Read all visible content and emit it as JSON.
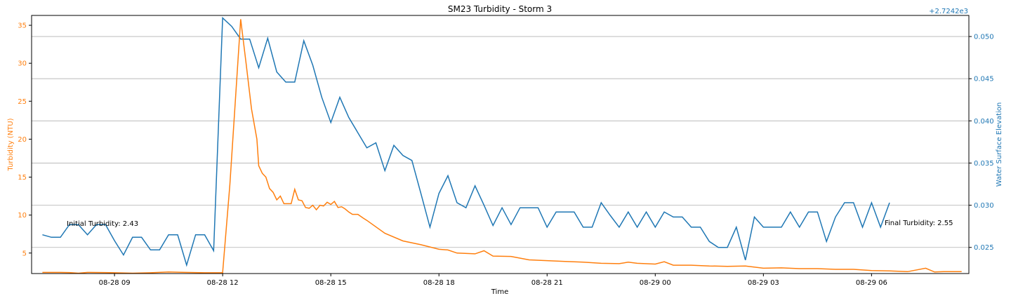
{
  "chart_data": {
    "type": "line",
    "title": "SM23 Turbidity - Storm 3",
    "xlabel": "Time",
    "ylabel_left": "Turbidity (NTU)",
    "ylabel_right": "Water Surface Elevation",
    "right_axis_offset_text": "+2.7242e3",
    "x_ticks": [
      "08-28 09",
      "08-28 12",
      "08-28 15",
      "08-28 18",
      "08-28 21",
      "08-29 00",
      "08-29 03",
      "08-29 06"
    ],
    "y_left_ticks": [
      "5",
      "10",
      "15",
      "20",
      "25",
      "30",
      "35"
    ],
    "y_right_ticks": [
      "0.025",
      "0.030",
      "0.035",
      "0.040",
      "0.045",
      "0.050"
    ],
    "xlim_hours": [
      6.7,
      32.7
    ],
    "ylim_left": [
      2.3,
      36.3
    ],
    "ylim_right": [
      0.0219,
      0.0525
    ],
    "grid": "horizontal lines at right-axis ticks",
    "colors": {
      "turbidity": "#ff7f0e",
      "water_surface_elevation": "#1f77b4"
    },
    "annotations": {
      "initial": "Initial Turbidity: 2.43",
      "final": "Final Turbidity: 2.55"
    },
    "series": [
      {
        "axis": "left",
        "points": [
          [
            7.0,
            2.45
          ],
          [
            7.5,
            2.45
          ],
          [
            7.75,
            2.43
          ],
          [
            8.0,
            2.35
          ],
          [
            8.25,
            2.45
          ],
          [
            8.75,
            2.43
          ],
          [
            9.0,
            2.4
          ],
          [
            9.5,
            2.35
          ],
          [
            10.0,
            2.4
          ],
          [
            10.5,
            2.5
          ],
          [
            11.0,
            2.45
          ],
          [
            11.5,
            2.4
          ],
          [
            12.0,
            2.42
          ],
          [
            12.2,
            14.0
          ],
          [
            12.5,
            35.8
          ],
          [
            12.65,
            30.0
          ],
          [
            12.8,
            24.0
          ],
          [
            12.95,
            20.0
          ],
          [
            13.0,
            16.5
          ],
          [
            13.1,
            15.5
          ],
          [
            13.2,
            15.0
          ],
          [
            13.3,
            13.5
          ],
          [
            13.4,
            13.0
          ],
          [
            13.5,
            12.0
          ],
          [
            13.6,
            12.5
          ],
          [
            13.7,
            11.5
          ],
          [
            13.8,
            11.5
          ],
          [
            13.9,
            11.5
          ],
          [
            14.0,
            13.4
          ],
          [
            14.1,
            12.0
          ],
          [
            14.2,
            11.9
          ],
          [
            14.3,
            11.0
          ],
          [
            14.4,
            10.9
          ],
          [
            14.5,
            11.3
          ],
          [
            14.6,
            10.7
          ],
          [
            14.7,
            11.3
          ],
          [
            14.8,
            11.2
          ],
          [
            14.9,
            11.7
          ],
          [
            15.0,
            11.4
          ],
          [
            15.1,
            11.8
          ],
          [
            15.2,
            11.0
          ],
          [
            15.3,
            11.1
          ],
          [
            15.4,
            10.8
          ],
          [
            15.5,
            10.4
          ],
          [
            15.6,
            10.1
          ],
          [
            15.75,
            10.1
          ],
          [
            15.9,
            9.6
          ],
          [
            16.0,
            9.3
          ],
          [
            16.5,
            7.6
          ],
          [
            17.0,
            6.6
          ],
          [
            17.5,
            6.1
          ],
          [
            18.0,
            5.5
          ],
          [
            18.25,
            5.4
          ],
          [
            18.5,
            5.0
          ],
          [
            19.0,
            4.9
          ],
          [
            19.25,
            5.3
          ],
          [
            19.5,
            4.6
          ],
          [
            20.0,
            4.55
          ],
          [
            20.5,
            4.1
          ],
          [
            21.0,
            4.0
          ],
          [
            21.5,
            3.9
          ],
          [
            22.0,
            3.8
          ],
          [
            22.5,
            3.65
          ],
          [
            23.0,
            3.6
          ],
          [
            23.25,
            3.8
          ],
          [
            23.5,
            3.65
          ],
          [
            24.0,
            3.55
          ],
          [
            24.25,
            3.85
          ],
          [
            24.5,
            3.4
          ],
          [
            25.0,
            3.4
          ],
          [
            25.5,
            3.3
          ],
          [
            26.0,
            3.25
          ],
          [
            26.5,
            3.3
          ],
          [
            27.0,
            3.0
          ],
          [
            27.5,
            3.05
          ],
          [
            28.0,
            2.95
          ],
          [
            28.5,
            2.95
          ],
          [
            29.0,
            2.85
          ],
          [
            29.5,
            2.85
          ],
          [
            30.0,
            2.7
          ],
          [
            30.5,
            2.65
          ],
          [
            31.0,
            2.55
          ],
          [
            31.5,
            3.0
          ],
          [
            31.75,
            2.5
          ],
          [
            32.0,
            2.55
          ],
          [
            32.25,
            2.55
          ],
          [
            32.5,
            2.55
          ]
        ]
      },
      {
        "axis": "right",
        "points": [
          [
            7.0,
            0.0265
          ],
          [
            7.25,
            0.0262
          ],
          [
            7.5,
            0.0262
          ],
          [
            7.75,
            0.0277
          ],
          [
            8.0,
            0.0277
          ],
          [
            8.25,
            0.0265
          ],
          [
            8.5,
            0.0277
          ],
          [
            8.75,
            0.0277
          ],
          [
            9.0,
            0.0258
          ],
          [
            9.25,
            0.0241
          ],
          [
            9.5,
            0.0262
          ],
          [
            9.75,
            0.0262
          ],
          [
            10.0,
            0.0247
          ],
          [
            10.25,
            0.0247
          ],
          [
            10.5,
            0.0265
          ],
          [
            10.75,
            0.0265
          ],
          [
            11.0,
            0.0229
          ],
          [
            11.25,
            0.0265
          ],
          [
            11.5,
            0.0265
          ],
          [
            11.75,
            0.0246
          ],
          [
            12.0,
            0.0522
          ],
          [
            12.25,
            0.0512
          ],
          [
            12.5,
            0.0497
          ],
          [
            12.75,
            0.0497
          ],
          [
            13.0,
            0.0463
          ],
          [
            13.25,
            0.0498
          ],
          [
            13.5,
            0.0458
          ],
          [
            13.75,
            0.0446
          ],
          [
            14.0,
            0.0446
          ],
          [
            14.25,
            0.0495
          ],
          [
            14.5,
            0.0466
          ],
          [
            14.75,
            0.0428
          ],
          [
            15.0,
            0.0398
          ],
          [
            15.25,
            0.0428
          ],
          [
            15.5,
            0.0404
          ],
          [
            15.75,
            0.0386
          ],
          [
            16.0,
            0.0368
          ],
          [
            16.25,
            0.0374
          ],
          [
            16.5,
            0.0341
          ],
          [
            16.75,
            0.0371
          ],
          [
            17.0,
            0.0359
          ],
          [
            17.25,
            0.0353
          ],
          [
            17.5,
            0.0314
          ],
          [
            17.75,
            0.0274
          ],
          [
            18.0,
            0.0314
          ],
          [
            18.25,
            0.0335
          ],
          [
            18.5,
            0.0303
          ],
          [
            18.75,
            0.0297
          ],
          [
            19.0,
            0.0323
          ],
          [
            19.25,
            0.03
          ],
          [
            19.5,
            0.0276
          ],
          [
            19.75,
            0.0297
          ],
          [
            20.0,
            0.0277
          ],
          [
            20.25,
            0.0297
          ],
          [
            20.5,
            0.0297
          ],
          [
            20.75,
            0.0297
          ],
          [
            21.0,
            0.0274
          ],
          [
            21.25,
            0.0292
          ],
          [
            21.5,
            0.0292
          ],
          [
            21.75,
            0.0292
          ],
          [
            22.0,
            0.0274
          ],
          [
            22.25,
            0.0274
          ],
          [
            22.5,
            0.0303
          ],
          [
            22.75,
            0.0288
          ],
          [
            23.0,
            0.0274
          ],
          [
            23.25,
            0.0292
          ],
          [
            23.5,
            0.0274
          ],
          [
            23.75,
            0.0292
          ],
          [
            24.0,
            0.0274
          ],
          [
            24.25,
            0.0292
          ],
          [
            24.5,
            0.0286
          ],
          [
            24.75,
            0.0286
          ],
          [
            25.0,
            0.0274
          ],
          [
            25.25,
            0.0274
          ],
          [
            25.5,
            0.0257
          ],
          [
            25.75,
            0.025
          ],
          [
            26.0,
            0.025
          ],
          [
            26.25,
            0.0274
          ],
          [
            26.5,
            0.0235
          ],
          [
            26.75,
            0.0286
          ],
          [
            27.0,
            0.0274
          ],
          [
            27.25,
            0.0274
          ],
          [
            27.5,
            0.0274
          ],
          [
            27.75,
            0.0292
          ],
          [
            28.0,
            0.0274
          ],
          [
            28.25,
            0.0292
          ],
          [
            28.5,
            0.0292
          ],
          [
            28.75,
            0.0257
          ],
          [
            29.0,
            0.0286
          ],
          [
            29.25,
            0.0303
          ],
          [
            29.5,
            0.0303
          ],
          [
            29.75,
            0.0274
          ],
          [
            30.0,
            0.0303
          ],
          [
            30.25,
            0.0274
          ],
          [
            30.5,
            0.0303
          ]
        ]
      }
    ]
  }
}
